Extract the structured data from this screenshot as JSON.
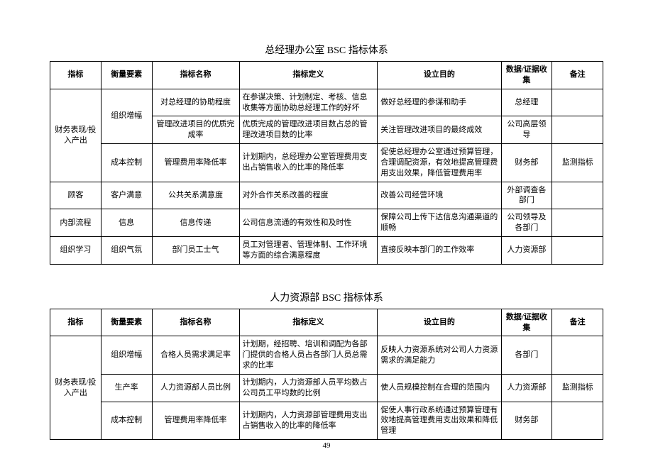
{
  "page_number": "49",
  "tables": [
    {
      "title": "总经理办公室 BSC 指标体系",
      "columns": [
        "指标",
        "衡量要素",
        "指标名称",
        "指标定义",
        "设立目的",
        "数据/证据收集",
        "备注"
      ],
      "groups": [
        {
          "indicator": "财务表现/投入产出",
          "factors": [
            {
              "factor": "组织增幅",
              "rows": [
                {
                  "name": "对总经理的协助程度",
                  "def": "在参谋决策、计划制定、考核、信息收集等方面协助总经理工作的好坏",
                  "purpose": "做好总经理的参谋和助手",
                  "source": "总经理",
                  "note": ""
                },
                {
                  "name": "管理改进项目的优质完成率",
                  "def": "优质完成的管理改进项目数占总的管理改进项目数的比率",
                  "purpose": "关注管理改进项目的最终成效",
                  "source": "公司高层领导",
                  "note": ""
                }
              ]
            },
            {
              "factor": "成本控制",
              "rows": [
                {
                  "name": "管理费用率降低率",
                  "def": "计划期内，总经理办公室管理费用支出占销售收入的比率的降低率",
                  "purpose": "促使总经理办公室通过预算管理，合理调配资源，有效地提高管理费用支出效果，降低管理费用率",
                  "source": "财务部",
                  "note": "监测指标"
                }
              ]
            }
          ]
        },
        {
          "indicator": "顾客",
          "factors": [
            {
              "factor": "客户满意",
              "rows": [
                {
                  "name": "公共关系满意度",
                  "def": "对外合作关系改善的程度",
                  "purpose": "改善公司经营环境",
                  "source": "外部调查各部门",
                  "note": ""
                }
              ]
            }
          ]
        },
        {
          "indicator": "内部流程",
          "factors": [
            {
              "factor": "信息",
              "rows": [
                {
                  "name": "信息传递",
                  "def": "公司信息流通的有效性和及时性",
                  "purpose": "保障公司上传下达信息沟通渠道的顺畅",
                  "source": "公司领导及各部门",
                  "note": ""
                }
              ]
            }
          ]
        },
        {
          "indicator": "组织学习",
          "factors": [
            {
              "factor": "组织气氛",
              "rows": [
                {
                  "name": "部门员工士气",
                  "def": "员工对管理者、管理体制、工作环境等方面的综合满意程度",
                  "purpose": "直接反映本部门的工作效率",
                  "source": "人力资源部",
                  "note": ""
                }
              ]
            }
          ]
        }
      ]
    },
    {
      "title": "人力资源部 BSC 指标体系",
      "columns": [
        "指标",
        "衡量要素",
        "指标名称",
        "指标定义",
        "设立目的",
        "数据/证据收集",
        "备注"
      ],
      "groups": [
        {
          "indicator": "财务表现/投入产出",
          "factors": [
            {
              "factor": "组织增幅",
              "rows": [
                {
                  "name": "合格人员需求满足率",
                  "def": "计划期，经招聘、培训和调配为各部门提供的合格人员占各部门人员总需求的比率",
                  "purpose": "反映人力资源系统对公司人力资源需求的满足能力",
                  "source": "各部门",
                  "note": ""
                }
              ]
            },
            {
              "factor": "生产率",
              "rows": [
                {
                  "name": "人力资源部人员比例",
                  "def": "计划期内，人力资源部人员平均数占公司员工平均数的比例",
                  "purpose": "使人员规模控制在合理的范围内",
                  "source": "人力资源部",
                  "note": "监测指标"
                }
              ]
            },
            {
              "factor": "成本控制",
              "rows": [
                {
                  "name": "管理费用率降低率",
                  "def": "计划期内，人力资源部管理费用支出占销售收入的比率的降低率",
                  "purpose": "促使人事行政系统通过预算管理有效地提高管理费用支出效果和降低管理",
                  "source": "财务部",
                  "note": ""
                }
              ]
            }
          ]
        }
      ]
    }
  ]
}
